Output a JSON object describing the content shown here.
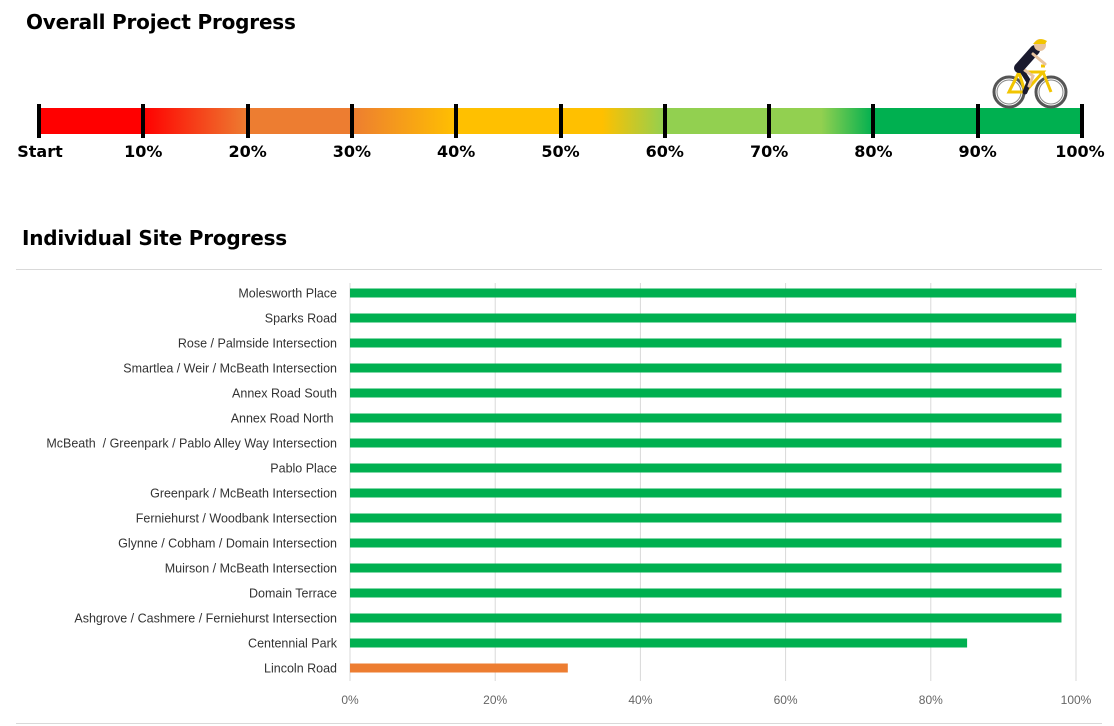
{
  "overall": {
    "title": "Overall Project Progress",
    "scale_labels": [
      "Start",
      "10%",
      "20%",
      "30%",
      "40%",
      "50%",
      "60%",
      "70%",
      "80%",
      "90%",
      "100%"
    ],
    "progress_percent": 95,
    "colors": {
      "red": "#ff0000",
      "orange": "#ed7d31",
      "yellow": "#ffc000",
      "light_green": "#92d050",
      "green": "#00b050"
    },
    "marker_icon": "cyclist-icon"
  },
  "sites": {
    "title": "Individual Site Progress",
    "chart_data": {
      "type": "bar",
      "orientation": "horizontal",
      "categories": [
        "Molesworth Place",
        "Sparks Road",
        "Rose / Palmside Intersection",
        "Smartlea / Weir / McBeath Intersection",
        "Annex Road South",
        "Annex Road North ",
        "McBeath  / Greenpark / Pablo Alley Way Intersection",
        "Pablo Place",
        "Greenpark / McBeath Intersection",
        "Ferniehurst / Woodbank Intersection",
        "Glynne / Cobham / Domain Intersection",
        "Muirson / McBeath Intersection",
        "Domain Terrace",
        "Ashgrove / Cashmere / Ferniehurst Intersection",
        "Centennial Park",
        "Lincoln Road"
      ],
      "values": [
        1.0,
        1.0,
        0.98,
        0.98,
        0.98,
        0.98,
        0.98,
        0.98,
        0.98,
        0.98,
        0.98,
        0.98,
        0.98,
        0.98,
        0.85,
        0.3
      ],
      "bar_colors": [
        "#00b050",
        "#00b050",
        "#00b050",
        "#00b050",
        "#00b050",
        "#00b050",
        "#00b050",
        "#00b050",
        "#00b050",
        "#00b050",
        "#00b050",
        "#00b050",
        "#00b050",
        "#00b050",
        "#00b050",
        "#ed7d31"
      ],
      "x_ticks": [
        "0%",
        "20%",
        "40%",
        "60%",
        "80%",
        "100%"
      ],
      "xlim": [
        0,
        1
      ],
      "grid": true,
      "title": "",
      "xlabel": "",
      "ylabel": ""
    }
  }
}
